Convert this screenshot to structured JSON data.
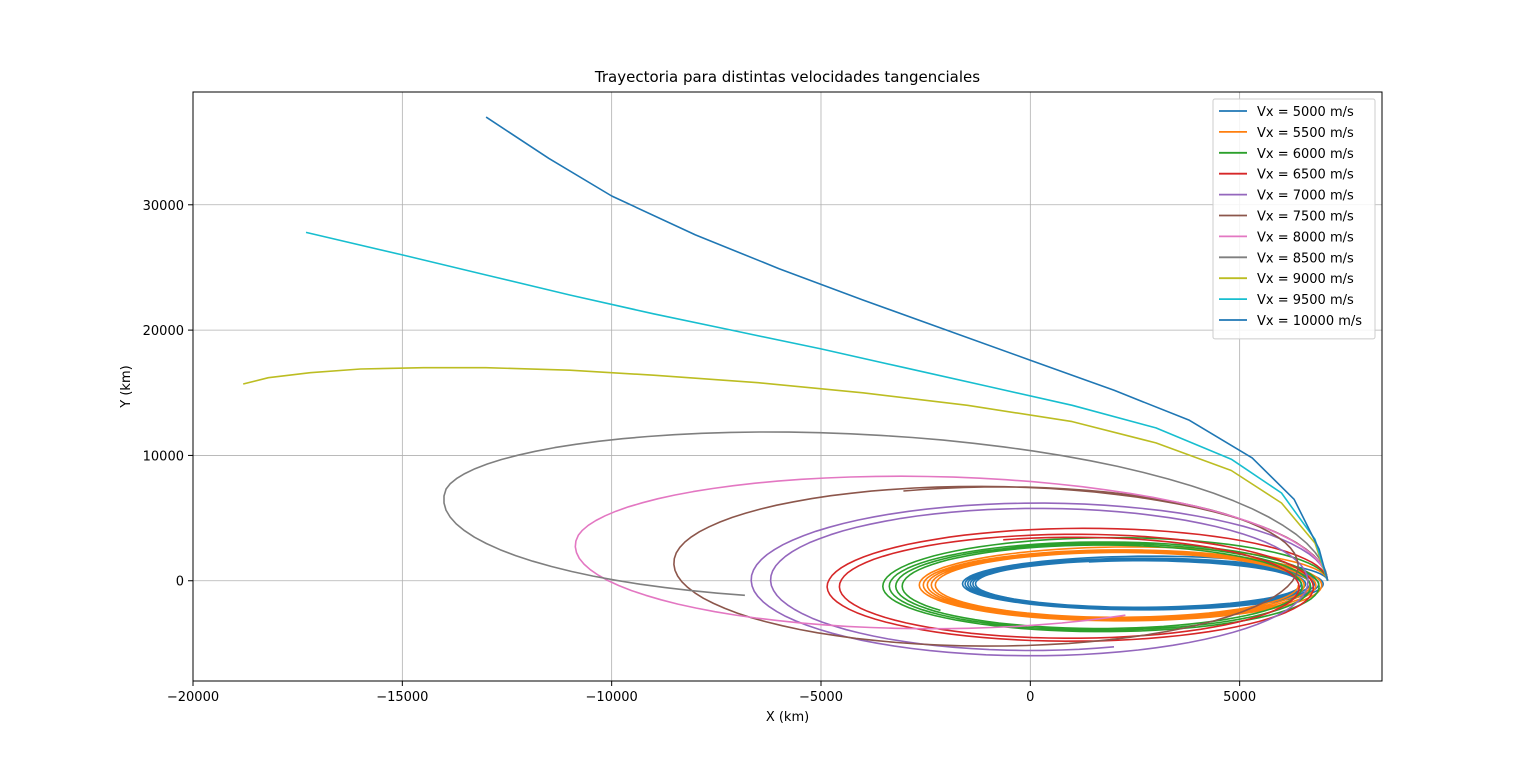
{
  "chart_data": {
    "type": "line",
    "title": "Trayectoria para distintas velocidades tangenciales",
    "xlabel": "X (km)",
    "ylabel": "Y (km)",
    "xlim": [
      -20000,
      8400
    ],
    "ylim": [
      -8000,
      39000
    ],
    "xticks": [
      -20000,
      -15000,
      -10000,
      -5000,
      0,
      5000
    ],
    "yticks": [
      0,
      10000,
      20000,
      30000
    ],
    "xtick_labels": [
      "−20000",
      "−15000",
      "−10000",
      "−5000",
      "0",
      "5000"
    ],
    "ytick_labels": [
      "0",
      "10000",
      "20000",
      "30000"
    ],
    "grid": true,
    "legend_position": "top-right",
    "series": [
      {
        "name": "Vx = 5000 m/s",
        "color": "#1f77b4",
        "kind": "orbit",
        "apocenter_x": -1650,
        "semi_minor": 2100,
        "center_y": -250,
        "turns": 6.3
      },
      {
        "name": "Vx = 5500 m/s",
        "color": "#ff7f0e",
        "kind": "orbit",
        "apocenter_x": -2700,
        "semi_minor": 2900,
        "center_y": -350,
        "turns": 5.0
      },
      {
        "name": "Vx = 6000 m/s",
        "color": "#2ca02c",
        "kind": "orbit",
        "apocenter_x": -3600,
        "semi_minor": 3700,
        "center_y": -450,
        "turns": 3.6
      },
      {
        "name": "Vx = 6500 m/s",
        "color": "#d62728",
        "kind": "orbit",
        "apocenter_x": -5000,
        "semi_minor": 4500,
        "center_y": -500,
        "turns": 2.3
      },
      {
        "name": "Vx = 7000 m/s",
        "color": "#9467bd",
        "kind": "orbit",
        "apocenter_x": -6900,
        "semi_minor": 6300,
        "center_y": 0,
        "turns": 1.8
      },
      {
        "name": "Vx = 7500 m/s",
        "color": "#8c564b",
        "kind": "orbit",
        "apocenter_x": -8900,
        "semi_minor": 7000,
        "center_y": 1300,
        "turns": 1.3
      },
      {
        "name": "Vx = 8000 m/s",
        "color": "#e377c2",
        "kind": "orbit",
        "apocenter_x": -11600,
        "semi_minor": 7200,
        "center_y": 2600,
        "turns": 0.84
      },
      {
        "name": "Vx = 8500 m/s",
        "color": "#7f7f7f",
        "kind": "orbit",
        "apocenter_x": -15100,
        "semi_minor": 8800,
        "center_y": 6200,
        "turns": 0.7
      },
      {
        "name": "Vx = 9000 m/s",
        "color": "#bcbd22",
        "kind": "path",
        "x": [
          7100,
          6800,
          6000,
          4800,
          3000,
          1000,
          -1500,
          -4000,
          -6500,
          -9000,
          -11000,
          -13000,
          -14500,
          -16000,
          -17200,
          -18200,
          -18800
        ],
        "y": [
          0,
          3000,
          6200,
          8800,
          11000,
          12700,
          14000,
          15000,
          15800,
          16400,
          16800,
          17000,
          17000,
          16900,
          16600,
          16200,
          15700
        ]
      },
      {
        "name": "Vx = 9500 m/s",
        "color": "#17becf",
        "kind": "path",
        "x": [
          7100,
          6800,
          6000,
          4800,
          3000,
          1000,
          -1000,
          -3000,
          -5000,
          -7000,
          -9000,
          -11000,
          -13000,
          -15000,
          -17300
        ],
        "y": [
          0,
          3300,
          7000,
          9700,
          12200,
          14000,
          15500,
          17000,
          18500,
          19900,
          21300,
          22800,
          24400,
          26000,
          27800
        ]
      },
      {
        "name": "Vx = 10000 m/s",
        "color": "#1f77b4",
        "kind": "path",
        "x": [
          7100,
          6900,
          6300,
          5300,
          3800,
          2000,
          0,
          -2000,
          -4000,
          -6000,
          -8000,
          -10000,
          -11500,
          -13000
        ],
        "y": [
          0,
          2500,
          6500,
          9800,
          12800,
          15200,
          17600,
          20000,
          22400,
          24900,
          27600,
          30700,
          33700,
          37000
        ]
      }
    ]
  }
}
